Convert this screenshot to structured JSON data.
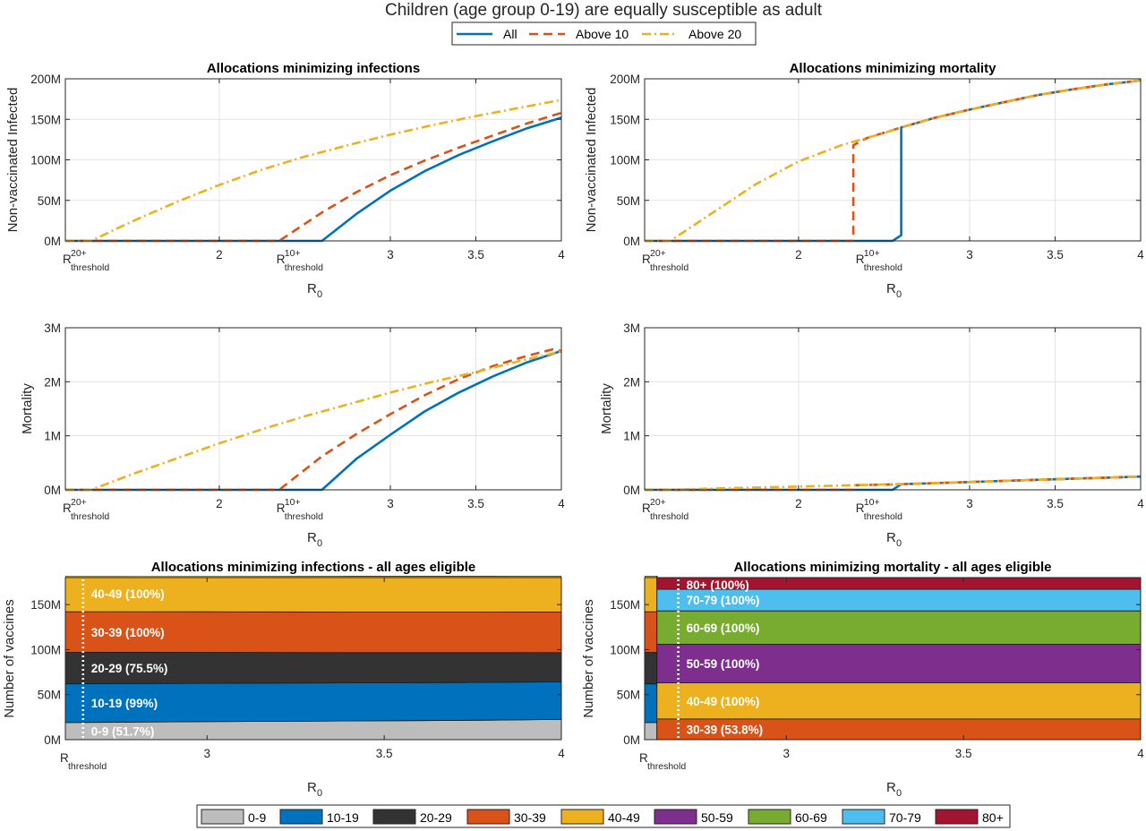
{
  "figure": {
    "suptitle": "Children (age group 0-19) are equally susceptible as adult"
  },
  "legend_top": {
    "items": [
      {
        "label": "All",
        "color": "#0072BD",
        "dash": "solid"
      },
      {
        "label": "Above 10",
        "color": "#D95319",
        "dash": "dashed"
      },
      {
        "label": "Above 20",
        "color": "#EDB120",
        "dash": "dashdot"
      }
    ]
  },
  "legend_bottom": {
    "items": [
      {
        "label": "0-9",
        "color": "#BDBDBD"
      },
      {
        "label": "10-19",
        "color": "#0072BD"
      },
      {
        "label": "20-29",
        "color": "#333333"
      },
      {
        "label": "30-39",
        "color": "#D95319"
      },
      {
        "label": "40-49",
        "color": "#EDB120"
      },
      {
        "label": "50-59",
        "color": "#7E2F8E"
      },
      {
        "label": "60-69",
        "color": "#77AC30"
      },
      {
        "label": "70-79",
        "color": "#4DBEEE"
      },
      {
        "label": "80+",
        "color": "#A2142F"
      }
    ]
  },
  "chart_data": [
    {
      "type": "line",
      "title": "Allocations minimizing infections",
      "xlabel": "R",
      "xlabel_sub": "0",
      "ylabel": "Non-vaccinated Infected",
      "xlim": [
        1.1,
        4
      ],
      "ylim": [
        0,
        200000000
      ],
      "xticks": [
        2,
        3,
        3.5,
        4
      ],
      "xtick_labels": [
        "2",
        "3",
        "3.5",
        "4"
      ],
      "yticks": [
        0,
        50000000,
        100000000,
        150000000,
        200000000
      ],
      "ytick_labels": [
        "0M",
        "50M",
        "100M",
        "150M",
        "200M"
      ],
      "threshold_marks": [
        {
          "x": 1.1,
          "main": "R",
          "sup": "20+",
          "sub": "threshold"
        },
        {
          "x": 2.35,
          "main": "R",
          "sup": "10+",
          "sub": "threshold"
        }
      ],
      "series": [
        {
          "name": "All",
          "x": [
            1.1,
            2.6,
            2.8,
            3.0,
            3.2,
            3.4,
            3.6,
            3.8,
            4.0
          ],
          "y": [
            0,
            0,
            33000000,
            62000000,
            86000000,
            106000000,
            123000000,
            139000000,
            152000000
          ]
        },
        {
          "name": "Above 10",
          "x": [
            1.1,
            2.35,
            2.6,
            2.8,
            3.0,
            3.2,
            3.4,
            3.6,
            3.8,
            4.0
          ],
          "y": [
            0,
            0,
            35000000,
            60000000,
            81000000,
            99000000,
            115000000,
            130000000,
            145000000,
            158000000
          ]
        },
        {
          "name": "Above 20",
          "x": [
            1.1,
            1.25,
            1.5,
            1.75,
            2.0,
            2.25,
            2.5,
            2.75,
            3.0,
            3.25,
            3.5,
            3.75,
            4.0
          ],
          "y": [
            0,
            0,
            25000000,
            48000000,
            69000000,
            88000000,
            104000000,
            118000000,
            131000000,
            143000000,
            154000000,
            164000000,
            174000000
          ]
        }
      ]
    },
    {
      "type": "line",
      "title": "Allocations minimizing mortality",
      "xlabel": "R",
      "xlabel_sub": "0",
      "ylabel": "Non-vaccinated Infected",
      "xlim": [
        1.1,
        4
      ],
      "ylim": [
        0,
        200000000
      ],
      "xticks": [
        2,
        3,
        3.5,
        4
      ],
      "xtick_labels": [
        "2",
        "3",
        "3.5",
        "4"
      ],
      "yticks": [
        0,
        50000000,
        100000000,
        150000000,
        200000000
      ],
      "ytick_labels": [
        "0M",
        "50M",
        "100M",
        "150M",
        "200M"
      ],
      "threshold_marks": [
        {
          "x": 1.1,
          "main": "R",
          "sup": "20+",
          "sub": "threshold"
        },
        {
          "x": 2.35,
          "main": "R",
          "sup": "10+",
          "sub": "threshold"
        }
      ],
      "series": [
        {
          "name": "All",
          "x": [
            1.1,
            2.55,
            2.6,
            2.6,
            2.8,
            3.0,
            3.2,
            3.4,
            3.6,
            3.8,
            4.0
          ],
          "y": [
            0,
            0,
            7000000,
            140000000,
            152000000,
            162000000,
            171000000,
            180000000,
            187000000,
            193000000,
            198000000
          ]
        },
        {
          "name": "Above 10",
          "x": [
            1.1,
            2.32,
            2.32,
            2.4,
            2.6,
            2.8,
            3.0,
            3.2,
            3.4,
            3.6,
            3.8,
            4.0
          ],
          "y": [
            0,
            0,
            118000000,
            127000000,
            140000000,
            152000000,
            162000000,
            171000000,
            180000000,
            187000000,
            193000000,
            198000000
          ]
        },
        {
          "name": "Above 20",
          "x": [
            1.1,
            1.25,
            1.5,
            1.75,
            2.0,
            2.25,
            2.5,
            2.6,
            2.8,
            3.0,
            3.2,
            3.4,
            3.6,
            3.8,
            4.0
          ],
          "y": [
            0,
            0,
            35000000,
            70000000,
            98000000,
            118000000,
            133000000,
            140000000,
            152000000,
            162000000,
            171000000,
            180000000,
            187000000,
            193000000,
            198000000
          ]
        }
      ]
    },
    {
      "type": "line",
      "title": "",
      "xlabel": "R",
      "xlabel_sub": "0",
      "ylabel": "Mortality",
      "xlim": [
        1.1,
        4
      ],
      "ylim": [
        0,
        3000000
      ],
      "xticks": [
        2,
        3,
        3.5,
        4
      ],
      "xtick_labels": [
        "2",
        "3",
        "3.5",
        "4"
      ],
      "yticks": [
        0,
        1000000,
        2000000,
        3000000
      ],
      "ytick_labels": [
        "0M",
        "1M",
        "2M",
        "3M"
      ],
      "threshold_marks": [
        {
          "x": 1.1,
          "main": "R",
          "sup": "20+",
          "sub": "threshold"
        },
        {
          "x": 2.35,
          "main": "R",
          "sup": "10+",
          "sub": "threshold"
        }
      ],
      "series": [
        {
          "name": "All",
          "x": [
            1.1,
            2.6,
            2.8,
            3.0,
            3.2,
            3.4,
            3.6,
            3.8,
            4.0
          ],
          "y": [
            0,
            0,
            570000,
            1020000,
            1450000,
            1800000,
            2100000,
            2360000,
            2570000
          ]
        },
        {
          "name": "Above 10",
          "x": [
            1.1,
            2.35,
            2.6,
            2.8,
            3.0,
            3.2,
            3.4,
            3.6,
            3.8,
            3.95,
            4.0
          ],
          "y": [
            0,
            0,
            620000,
            1030000,
            1400000,
            1750000,
            2050000,
            2290000,
            2480000,
            2600000,
            2570000
          ]
        },
        {
          "name": "Above 20",
          "x": [
            1.1,
            1.25,
            1.5,
            1.75,
            2.0,
            2.25,
            2.5,
            2.75,
            3.0,
            3.25,
            3.5,
            3.75,
            4.0
          ],
          "y": [
            0,
            0,
            300000,
            580000,
            860000,
            1120000,
            1360000,
            1580000,
            1800000,
            2000000,
            2180000,
            2380000,
            2560000
          ]
        }
      ]
    },
    {
      "type": "line",
      "title": "",
      "xlabel": "R",
      "xlabel_sub": "0",
      "ylabel": "Mortality",
      "xlim": [
        1.1,
        4
      ],
      "ylim": [
        0,
        3000000
      ],
      "xticks": [
        2,
        3,
        3.5,
        4
      ],
      "xtick_labels": [
        "2",
        "3",
        "3.5",
        "4"
      ],
      "yticks": [
        0,
        1000000,
        2000000,
        3000000
      ],
      "ytick_labels": [
        "0M",
        "1M",
        "2M",
        "3M"
      ],
      "threshold_marks": [
        {
          "x": 1.1,
          "main": "R",
          "sup": "20+",
          "sub": "threshold"
        },
        {
          "x": 2.35,
          "main": "R",
          "sup": "10+",
          "sub": "threshold"
        }
      ],
      "series": [
        {
          "name": "All",
          "x": [
            1.1,
            2.55,
            2.6,
            2.8,
            3.0,
            3.2,
            3.4,
            3.6,
            3.8,
            4.0
          ],
          "y": [
            0,
            0,
            105000,
            125000,
            145000,
            165000,
            185000,
            205000,
            225000,
            245000
          ]
        },
        {
          "name": "Above 10",
          "x": [
            1.1,
            2.32,
            2.32,
            2.6,
            2.8,
            3.0,
            3.2,
            3.4,
            3.6,
            3.8,
            4.0
          ],
          "y": [
            0,
            0,
            85000,
            105000,
            125000,
            145000,
            165000,
            185000,
            205000,
            225000,
            245000
          ]
        },
        {
          "name": "Above 20",
          "x": [
            1.1,
            1.25,
            1.5,
            2.0,
            2.5,
            3.0,
            3.5,
            4.0
          ],
          "y": [
            0,
            0,
            25000,
            60000,
            100000,
            145000,
            195000,
            245000
          ]
        }
      ]
    },
    {
      "type": "area",
      "title": "Allocations minimizing infections - all ages eligible",
      "xlabel": "R",
      "xlabel_sub": "0",
      "ylabel": "Number of vaccines",
      "xlim": [
        2.6,
        4
      ],
      "ylim": [
        0,
        180000000
      ],
      "xticks": [
        3,
        3.5,
        4
      ],
      "xtick_labels": [
        "3",
        "3.5",
        "4"
      ],
      "yticks": [
        0,
        50000000,
        100000000,
        150000000
      ],
      "ytick_labels": [
        "0M",
        "50M",
        "100M",
        "150M"
      ],
      "threshold_marks": [
        {
          "x": 2.6,
          "main": "R",
          "sup": "",
          "sub": "threshold"
        }
      ],
      "threshold_line_x": 2.65,
      "x": [
        2.6,
        2.8,
        3.0,
        3.2,
        3.4,
        3.6,
        3.8,
        4.0
      ],
      "stack": [
        {
          "group": "0-9",
          "values": [
            19000000,
            19500000,
            20000000,
            20400000,
            20800000,
            21200000,
            21700000,
            22500000
          ]
        },
        {
          "group": "10-19",
          "values": [
            43000000,
            42800000,
            42600000,
            42400000,
            42200000,
            42000000,
            41900000,
            41600000
          ]
        },
        {
          "group": "20-29",
          "values": [
            35000000,
            34800000,
            34400000,
            34100000,
            33700000,
            33500000,
            33100000,
            32800000
          ]
        },
        {
          "group": "30-39",
          "values": [
            45000000,
            45000000,
            45000000,
            45000000,
            45000000,
            45000000,
            45000000,
            45000000
          ]
        },
        {
          "group": "40-49",
          "values": [
            40000000,
            40000000,
            40000000,
            40000000,
            40000000,
            40000000,
            40000000,
            40000000
          ]
        }
      ],
      "band_labels": [
        "0-9 (51.7%)",
        "10-19 (99%)",
        "20-29 (75.5%)",
        "30-39 (100%)",
        "40-49 (100%)"
      ],
      "band_label_groups": [
        "0-9",
        "10-19",
        "20-29",
        "30-39",
        "40-49"
      ]
    },
    {
      "type": "area",
      "title": "Allocations minimizing mortality - all ages eligible",
      "xlabel": "R",
      "xlabel_sub": "0",
      "ylabel": "Number of vaccines",
      "xlim": [
        2.6,
        4
      ],
      "ylim": [
        0,
        180000000
      ],
      "xticks": [
        3,
        3.5,
        4
      ],
      "xtick_labels": [
        "3",
        "3.5",
        "4"
      ],
      "yticks": [
        0,
        50000000,
        100000000,
        150000000
      ],
      "ytick_labels": [
        "0M",
        "50M",
        "100M",
        "150M"
      ],
      "threshold_marks": [
        {
          "x": 2.6,
          "main": "R",
          "sup": "",
          "sub": "threshold"
        }
      ],
      "threshold_line_x": 2.695,
      "x": [
        2.6,
        2.635,
        2.635,
        4.0
      ],
      "stack": [
        {
          "group": "0-9",
          "values": [
            19000000,
            19000000,
            0,
            0
          ]
        },
        {
          "group": "10-19",
          "values": [
            43000000,
            43000000,
            0,
            0
          ]
        },
        {
          "group": "20-29",
          "values": [
            35000000,
            35000000,
            0,
            0
          ]
        },
        {
          "group": "30-39",
          "values": [
            45000000,
            45000000,
            23000000,
            23000000
          ]
        },
        {
          "group": "40-49",
          "values": [
            40000000,
            40000000,
            40000000,
            40000000
          ]
        },
        {
          "group": "50-59",
          "values": [
            0,
            0,
            43000000,
            43000000
          ]
        },
        {
          "group": "60-69",
          "values": [
            0,
            0,
            37000000,
            37000000
          ]
        },
        {
          "group": "70-79",
          "values": [
            0,
            0,
            24000000,
            24000000
          ]
        },
        {
          "group": "80+",
          "values": [
            0,
            0,
            13000000,
            13000000
          ]
        }
      ],
      "band_labels": [
        "30-39 (53.8%)",
        "40-49 (100%)",
        "50-59 (100%)",
        "60-69 (100%)",
        "70-79 (100%)",
        "80+ (100%)"
      ],
      "band_label_groups": [
        "30-39",
        "40-49",
        "50-59",
        "60-69",
        "70-79",
        "80+"
      ]
    }
  ]
}
